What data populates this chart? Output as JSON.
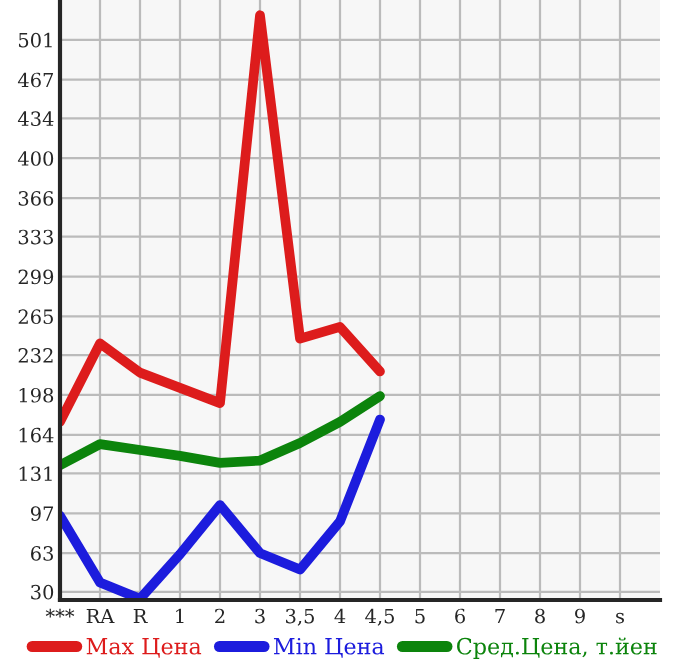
{
  "chart_data": {
    "type": "line",
    "categories": [
      "***",
      "RA",
      "R",
      "1",
      "2",
      "3",
      "3,5",
      "4",
      "4,5",
      "5",
      "6",
      "7",
      "8",
      "9",
      "s"
    ],
    "ylim": [
      23,
      535
    ],
    "yticks": [
      30,
      63,
      97,
      131,
      164,
      198,
      232,
      265,
      299,
      333,
      366,
      400,
      434,
      467,
      501
    ],
    "series": [
      {
        "name": "Max Цена",
        "color": "#dd1c1c",
        "values": [
          175,
          242,
          217,
          204,
          191,
          522,
          246,
          256,
          218,
          null,
          null,
          null,
          null,
          null,
          null
        ]
      },
      {
        "name": "Min Цена",
        "color": "#1c1cdd",
        "values": [
          95,
          38,
          24,
          62,
          104,
          63,
          49,
          90,
          177,
          null,
          null,
          null,
          null,
          null,
          null
        ]
      },
      {
        "name": "Сред.Цена, т.йен",
        "color": "#0c840c",
        "values": [
          138,
          156,
          151,
          146,
          140,
          142,
          157,
          175,
          197,
          null,
          null,
          null,
          null,
          null,
          null
        ]
      }
    ],
    "grid": true,
    "legend": "bottom",
    "marker": "none",
    "line_style": "solid"
  }
}
